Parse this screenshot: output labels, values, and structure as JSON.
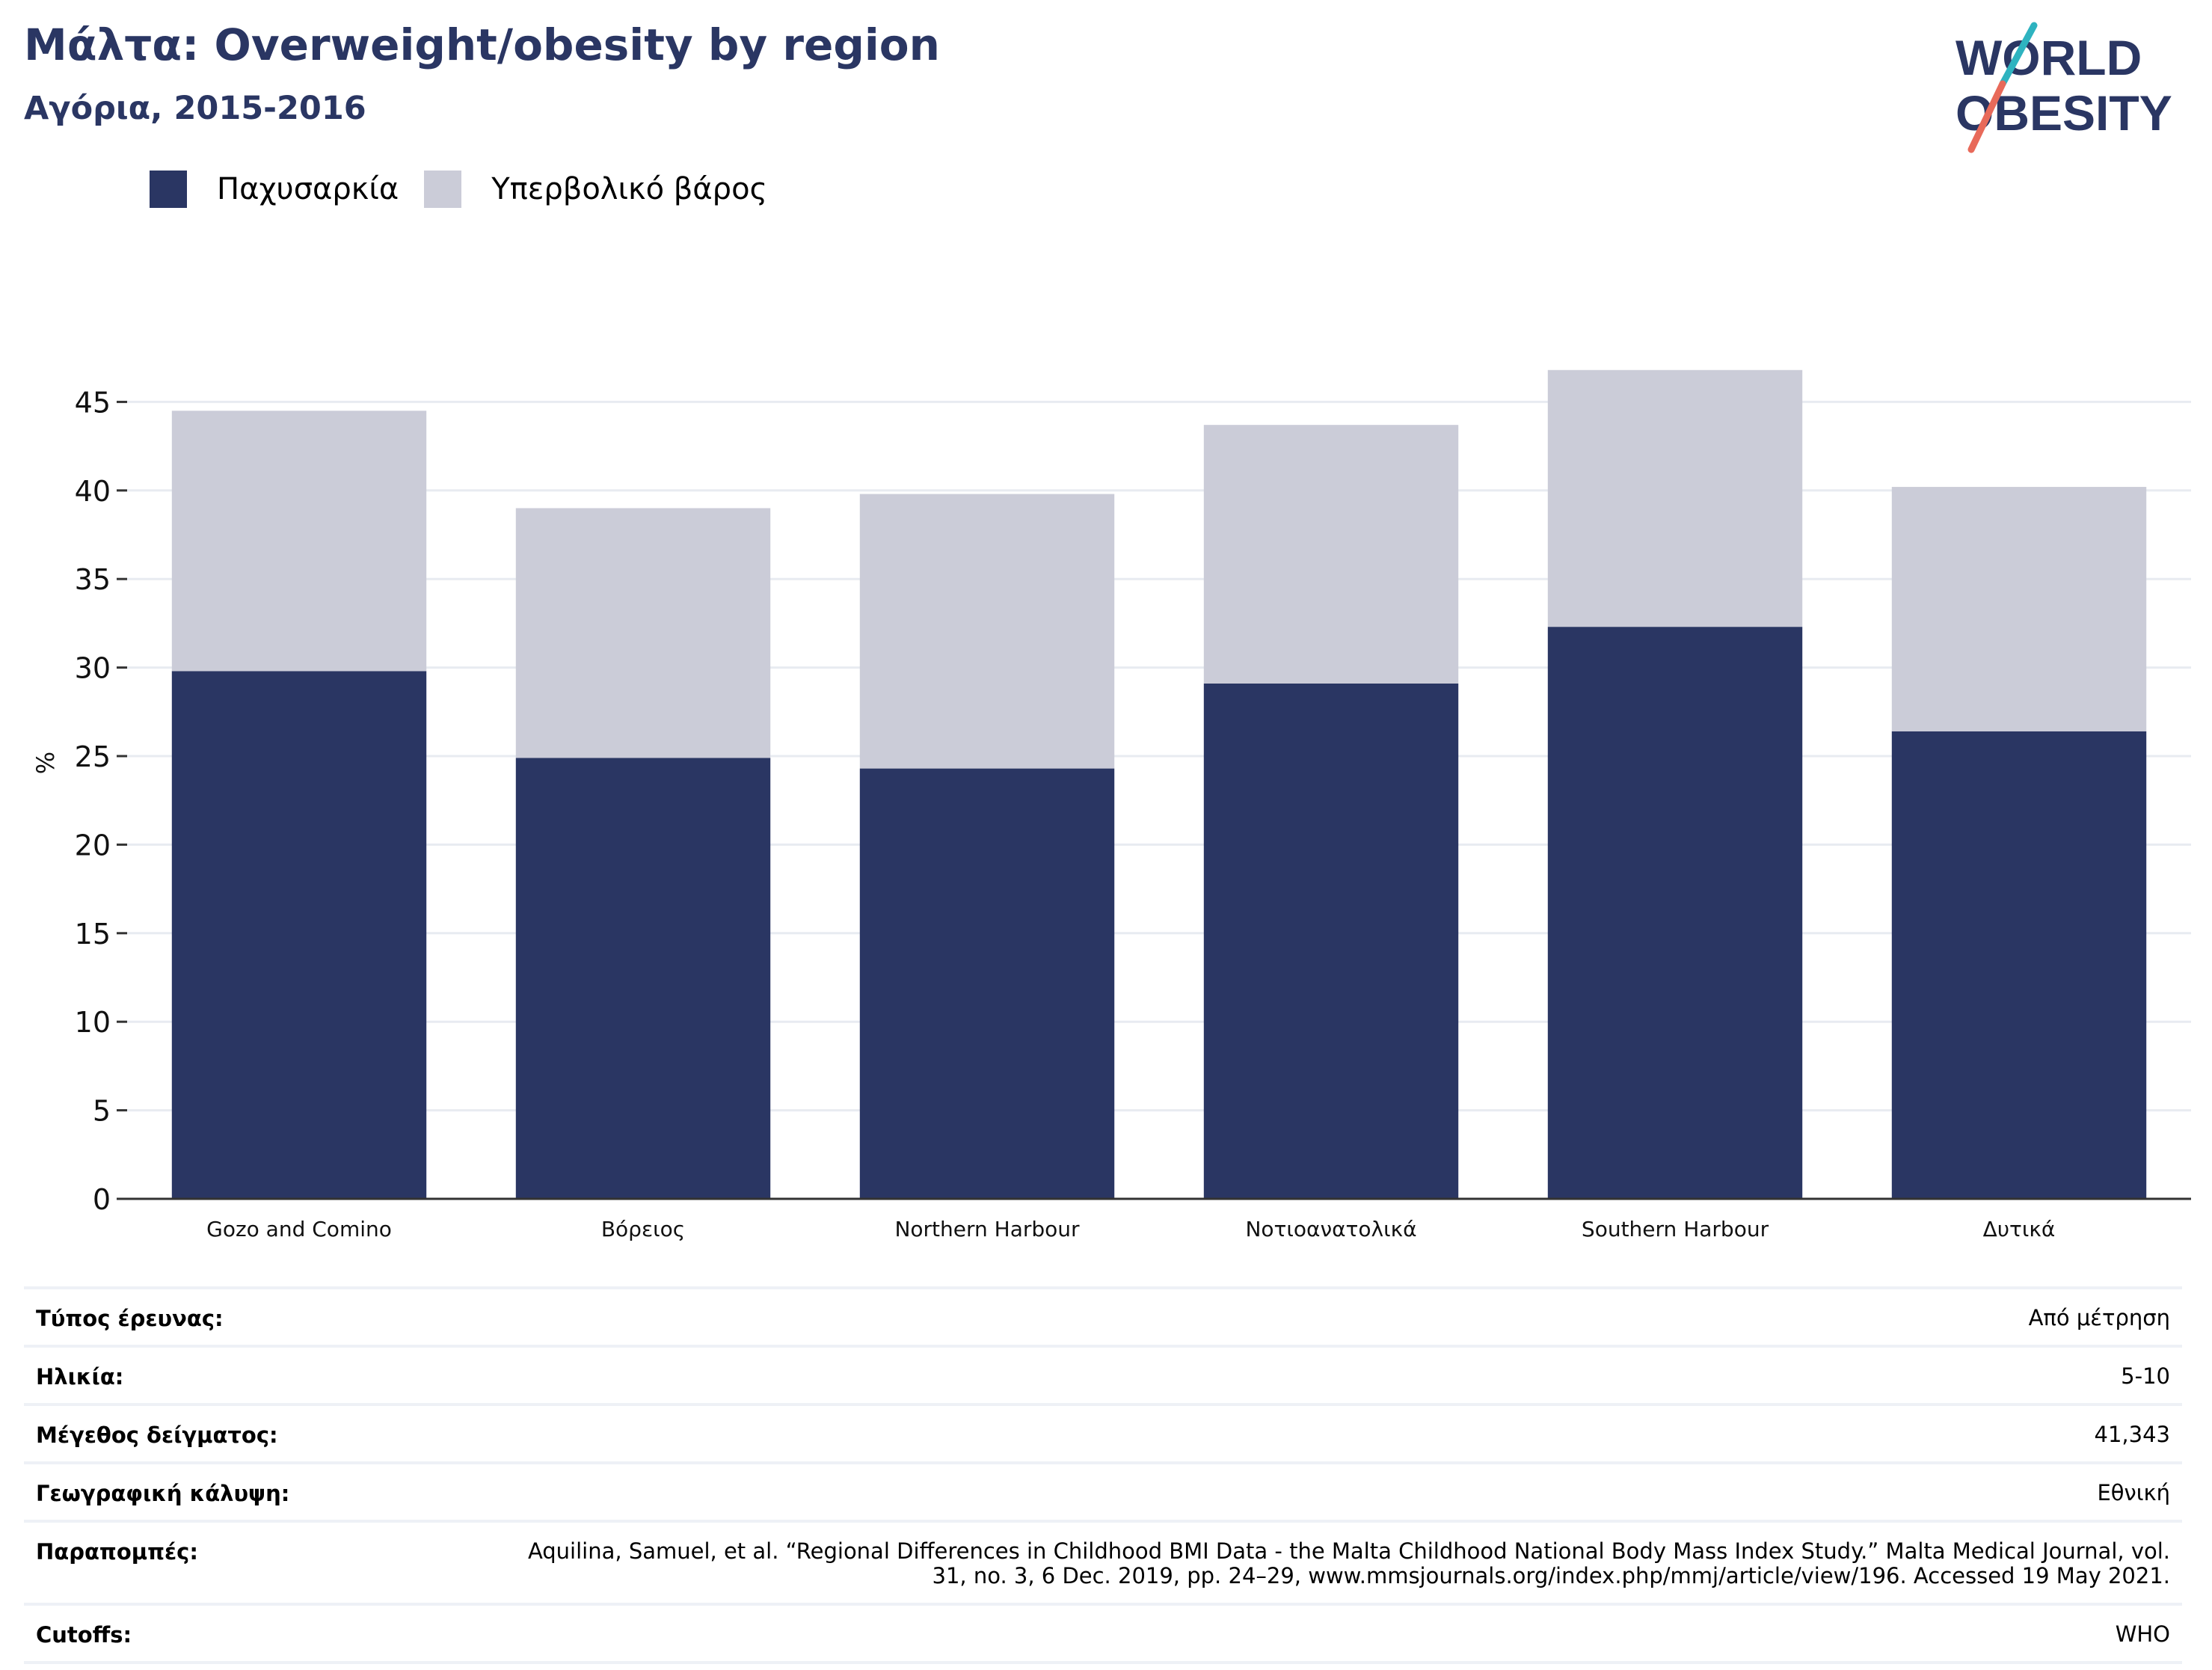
{
  "header": {
    "title": "Μάλτα: Overweight/obesity by region",
    "subtitle": "Αγόρια, 2015-2016"
  },
  "logo": {
    "line1": "WORLD",
    "line2": "OBESITY"
  },
  "colors": {
    "obesity": "#2a3663",
    "overweight": "#cbccd8",
    "title": "#2a3663",
    "logo_teal": "#2eb3c0",
    "logo_coral": "#e86a5a"
  },
  "chart_data": {
    "type": "bar",
    "stacked": true,
    "categories": [
      "Gozo and Comino",
      "Βόρειος",
      "Northern Harbour",
      "Νοτιοανατολικά",
      "Southern Harbour",
      "Δυτικά"
    ],
    "series": [
      {
        "name": "Παχυσαρκία",
        "values": [
          29.8,
          24.9,
          24.3,
          29.1,
          32.3,
          26.4
        ]
      },
      {
        "name": "Υπερβολικό βάρος",
        "values": [
          14.7,
          14.1,
          15.5,
          14.6,
          14.5,
          13.8
        ]
      }
    ],
    "ylabel": "%",
    "ylim": [
      0,
      47
    ],
    "yticks": [
      0,
      5,
      10,
      15,
      20,
      25,
      30,
      35,
      40,
      45
    ],
    "grid": true,
    "legend_position": "top-left"
  },
  "meta": [
    {
      "label": "Τύπος έρευνας:",
      "value": "Από μέτρηση"
    },
    {
      "label": "Ηλικία:",
      "value": "5-10"
    },
    {
      "label": "Μέγεθος δείγματος:",
      "value": "41,343"
    },
    {
      "label": "Γεωγραφική κάλυψη:",
      "value": "Εθνική"
    },
    {
      "label": "Παραπομπές:",
      "value": "Aquilina, Samuel, et al. “Regional Differences in Childhood BMI Data - the Malta Childhood National Body Mass Index Study.” Malta Medical Journal, vol. 31, no. 3, 6 Dec. 2019, pp. 24–29, www.mmsjournals.org/index.php/mmj/article/view/196. Accessed 19 May 2021."
    },
    {
      "label": "Cutoffs:",
      "value": "WHO"
    }
  ]
}
